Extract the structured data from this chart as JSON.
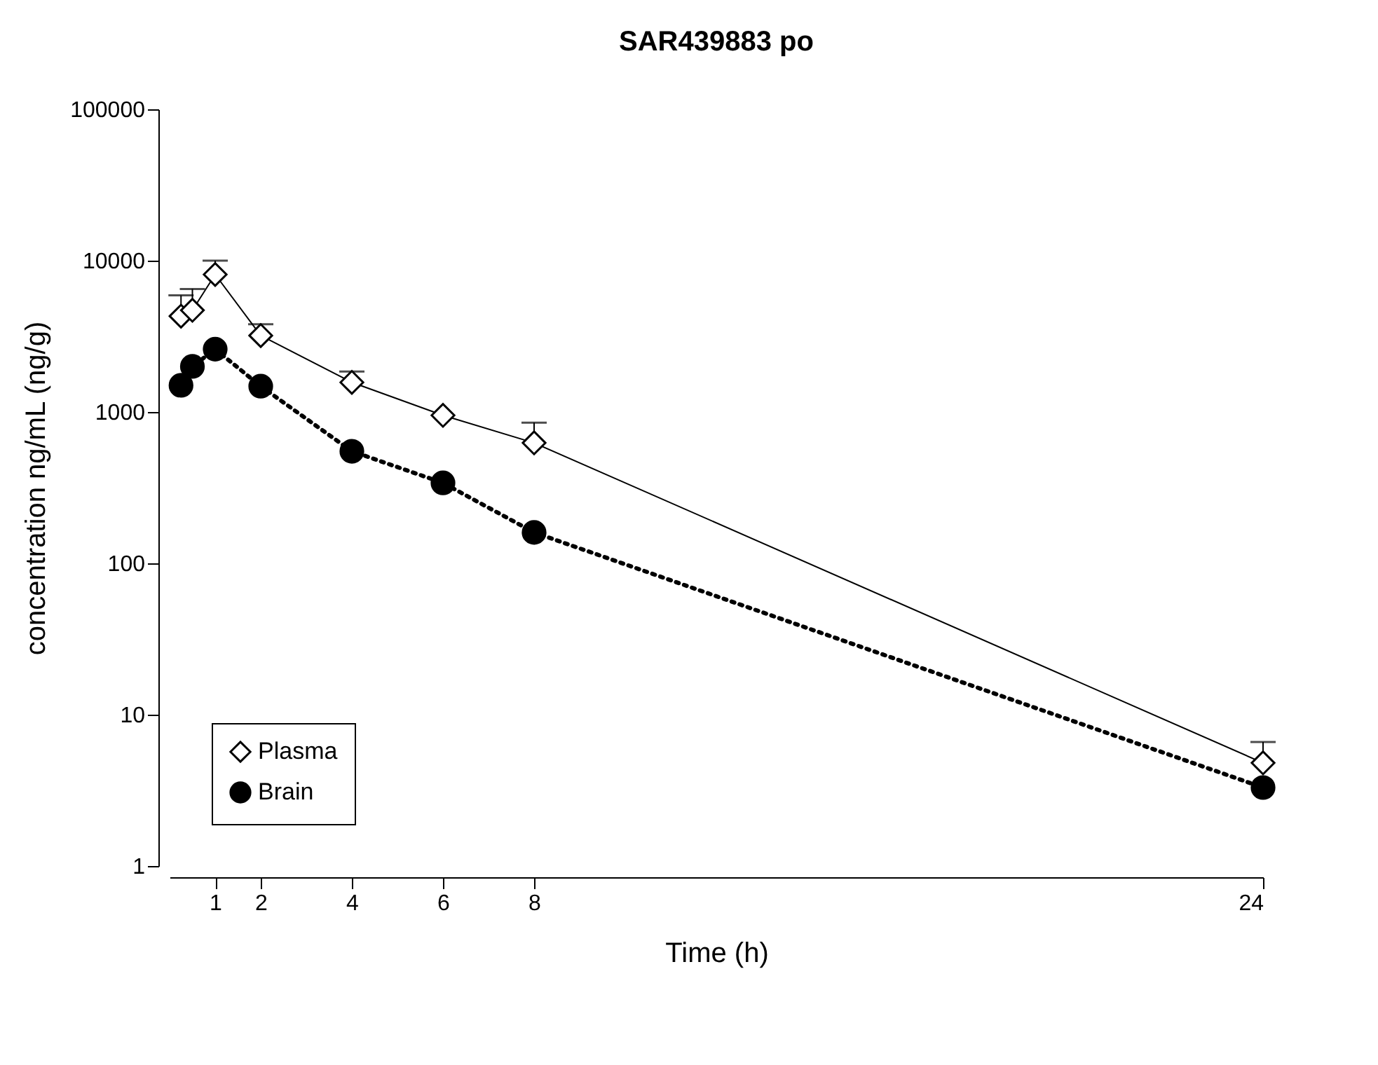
{
  "chart_data": {
    "type": "line",
    "title": "SAR439883 po",
    "xlabel": "Time (h)",
    "ylabel": "concentration ng/mL (ng/g)",
    "x": [
      0.25,
      0.5,
      1,
      2,
      4,
      6,
      8,
      24
    ],
    "series": [
      {
        "name": "Plasma",
        "color": "#000000",
        "marker": "diamond",
        "line_style": "solid",
        "values": [
          4300,
          4700,
          8100,
          3200,
          1570,
          950,
          625,
          4.8
        ],
        "errors": [
          [
            4300,
            5900
          ],
          [
            4700,
            6500
          ],
          [
            8100,
            10000
          ],
          [
            3200,
            3800
          ],
          [
            1570,
            1850
          ],
          null,
          [
            625,
            850
          ],
          [
            4.8,
            6.6
          ]
        ]
      },
      {
        "name": "Brain",
        "color": "#000000",
        "marker": "circle",
        "line_style": "dotted",
        "values": [
          1500,
          2000,
          2600,
          1480,
          550,
          340,
          160,
          3.3
        ]
      }
    ],
    "xlim": [
      0,
      24
    ],
    "xticks": [
      1,
      2,
      4,
      6,
      8,
      24
    ],
    "ylim": [
      1,
      100000
    ],
    "yticks": [
      1,
      10,
      100,
      1000,
      10000,
      100000
    ],
    "log": "y",
    "grid": false,
    "legend": "bottom left"
  }
}
